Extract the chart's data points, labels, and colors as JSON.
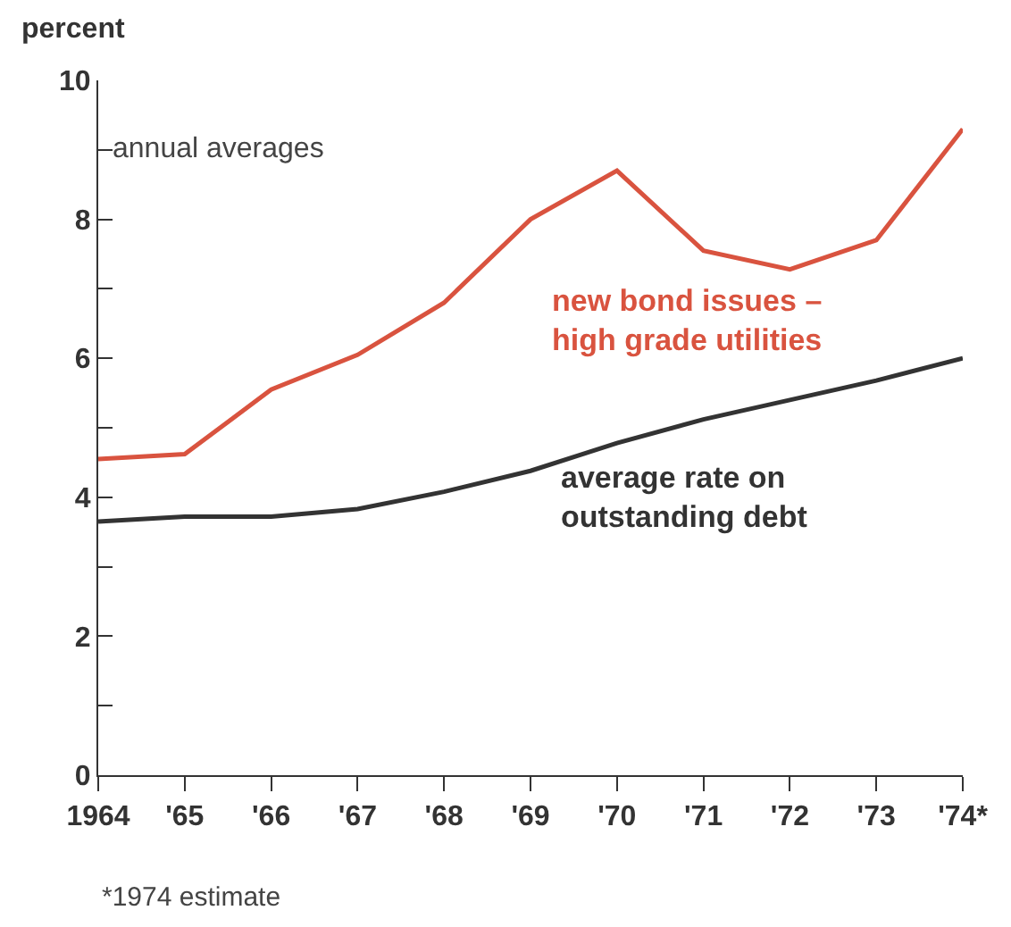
{
  "chart_data": {
    "type": "line",
    "ylabel": "percent",
    "categories": [
      "1964",
      "'65",
      "'66",
      "'67",
      "'68",
      "'69",
      "'70",
      "'71",
      "'72",
      "'73",
      "'74*"
    ],
    "series": [
      {
        "name": "new bond issues –\nhigh grade utilities",
        "color": "#d9533f",
        "values": [
          4.55,
          4.62,
          5.55,
          6.05,
          6.8,
          8.0,
          8.7,
          7.55,
          7.28,
          7.7,
          9.3
        ]
      },
      {
        "name": "average rate on\noutstanding debt",
        "color": "#333333",
        "values": [
          3.65,
          3.72,
          3.72,
          3.83,
          4.08,
          4.38,
          4.78,
          5.12,
          5.4,
          5.68,
          6.0
        ]
      }
    ],
    "ylim": [
      0,
      10
    ],
    "yticks": [
      0,
      {
        "value": 1,
        "label": null
      },
      2,
      {
        "value": 3,
        "label": null
      },
      4,
      {
        "value": 5,
        "label": null
      },
      6,
      {
        "value": 7,
        "label": null
      },
      8,
      {
        "value": 9,
        "label": null
      },
      10
    ],
    "annotations": [
      "annual averages",
      "*1974 estimate"
    ],
    "legend": false,
    "marker": "none",
    "line_style": "solid"
  }
}
